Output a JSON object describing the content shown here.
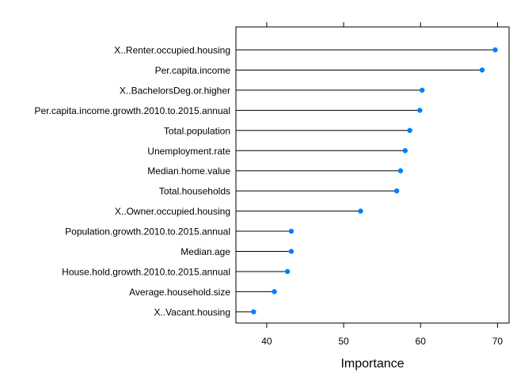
{
  "chart_data": {
    "type": "dotplot",
    "title": "",
    "xlabel": "Importance",
    "ylabel": "",
    "xlim": [
      36,
      71.5
    ],
    "xticks": [
      40,
      50,
      60,
      70
    ],
    "grid": false,
    "legend": "none",
    "point_color": "#0080FF",
    "line_color": "#000000",
    "categories": [
      "X..Renter.occupied.housing",
      "Per.capita.income",
      "X..BachelorsDeg.or.higher",
      "Per.capita.income.growth.2010.to.2015.annual",
      "Total.population",
      "Unemployment.rate",
      "Median.home.value",
      "Total.households",
      "X..Owner.occupied.housing",
      "Population.growth.2010.to.2015.annual",
      "Median.age",
      "House.hold.growth.2010.to.2015.annual",
      "Average.household.size",
      "X..Vacant.housing"
    ],
    "values": [
      69.7,
      68.0,
      60.2,
      59.9,
      58.6,
      58.0,
      57.4,
      56.9,
      52.2,
      43.2,
      43.2,
      42.7,
      41.0,
      38.3
    ]
  }
}
